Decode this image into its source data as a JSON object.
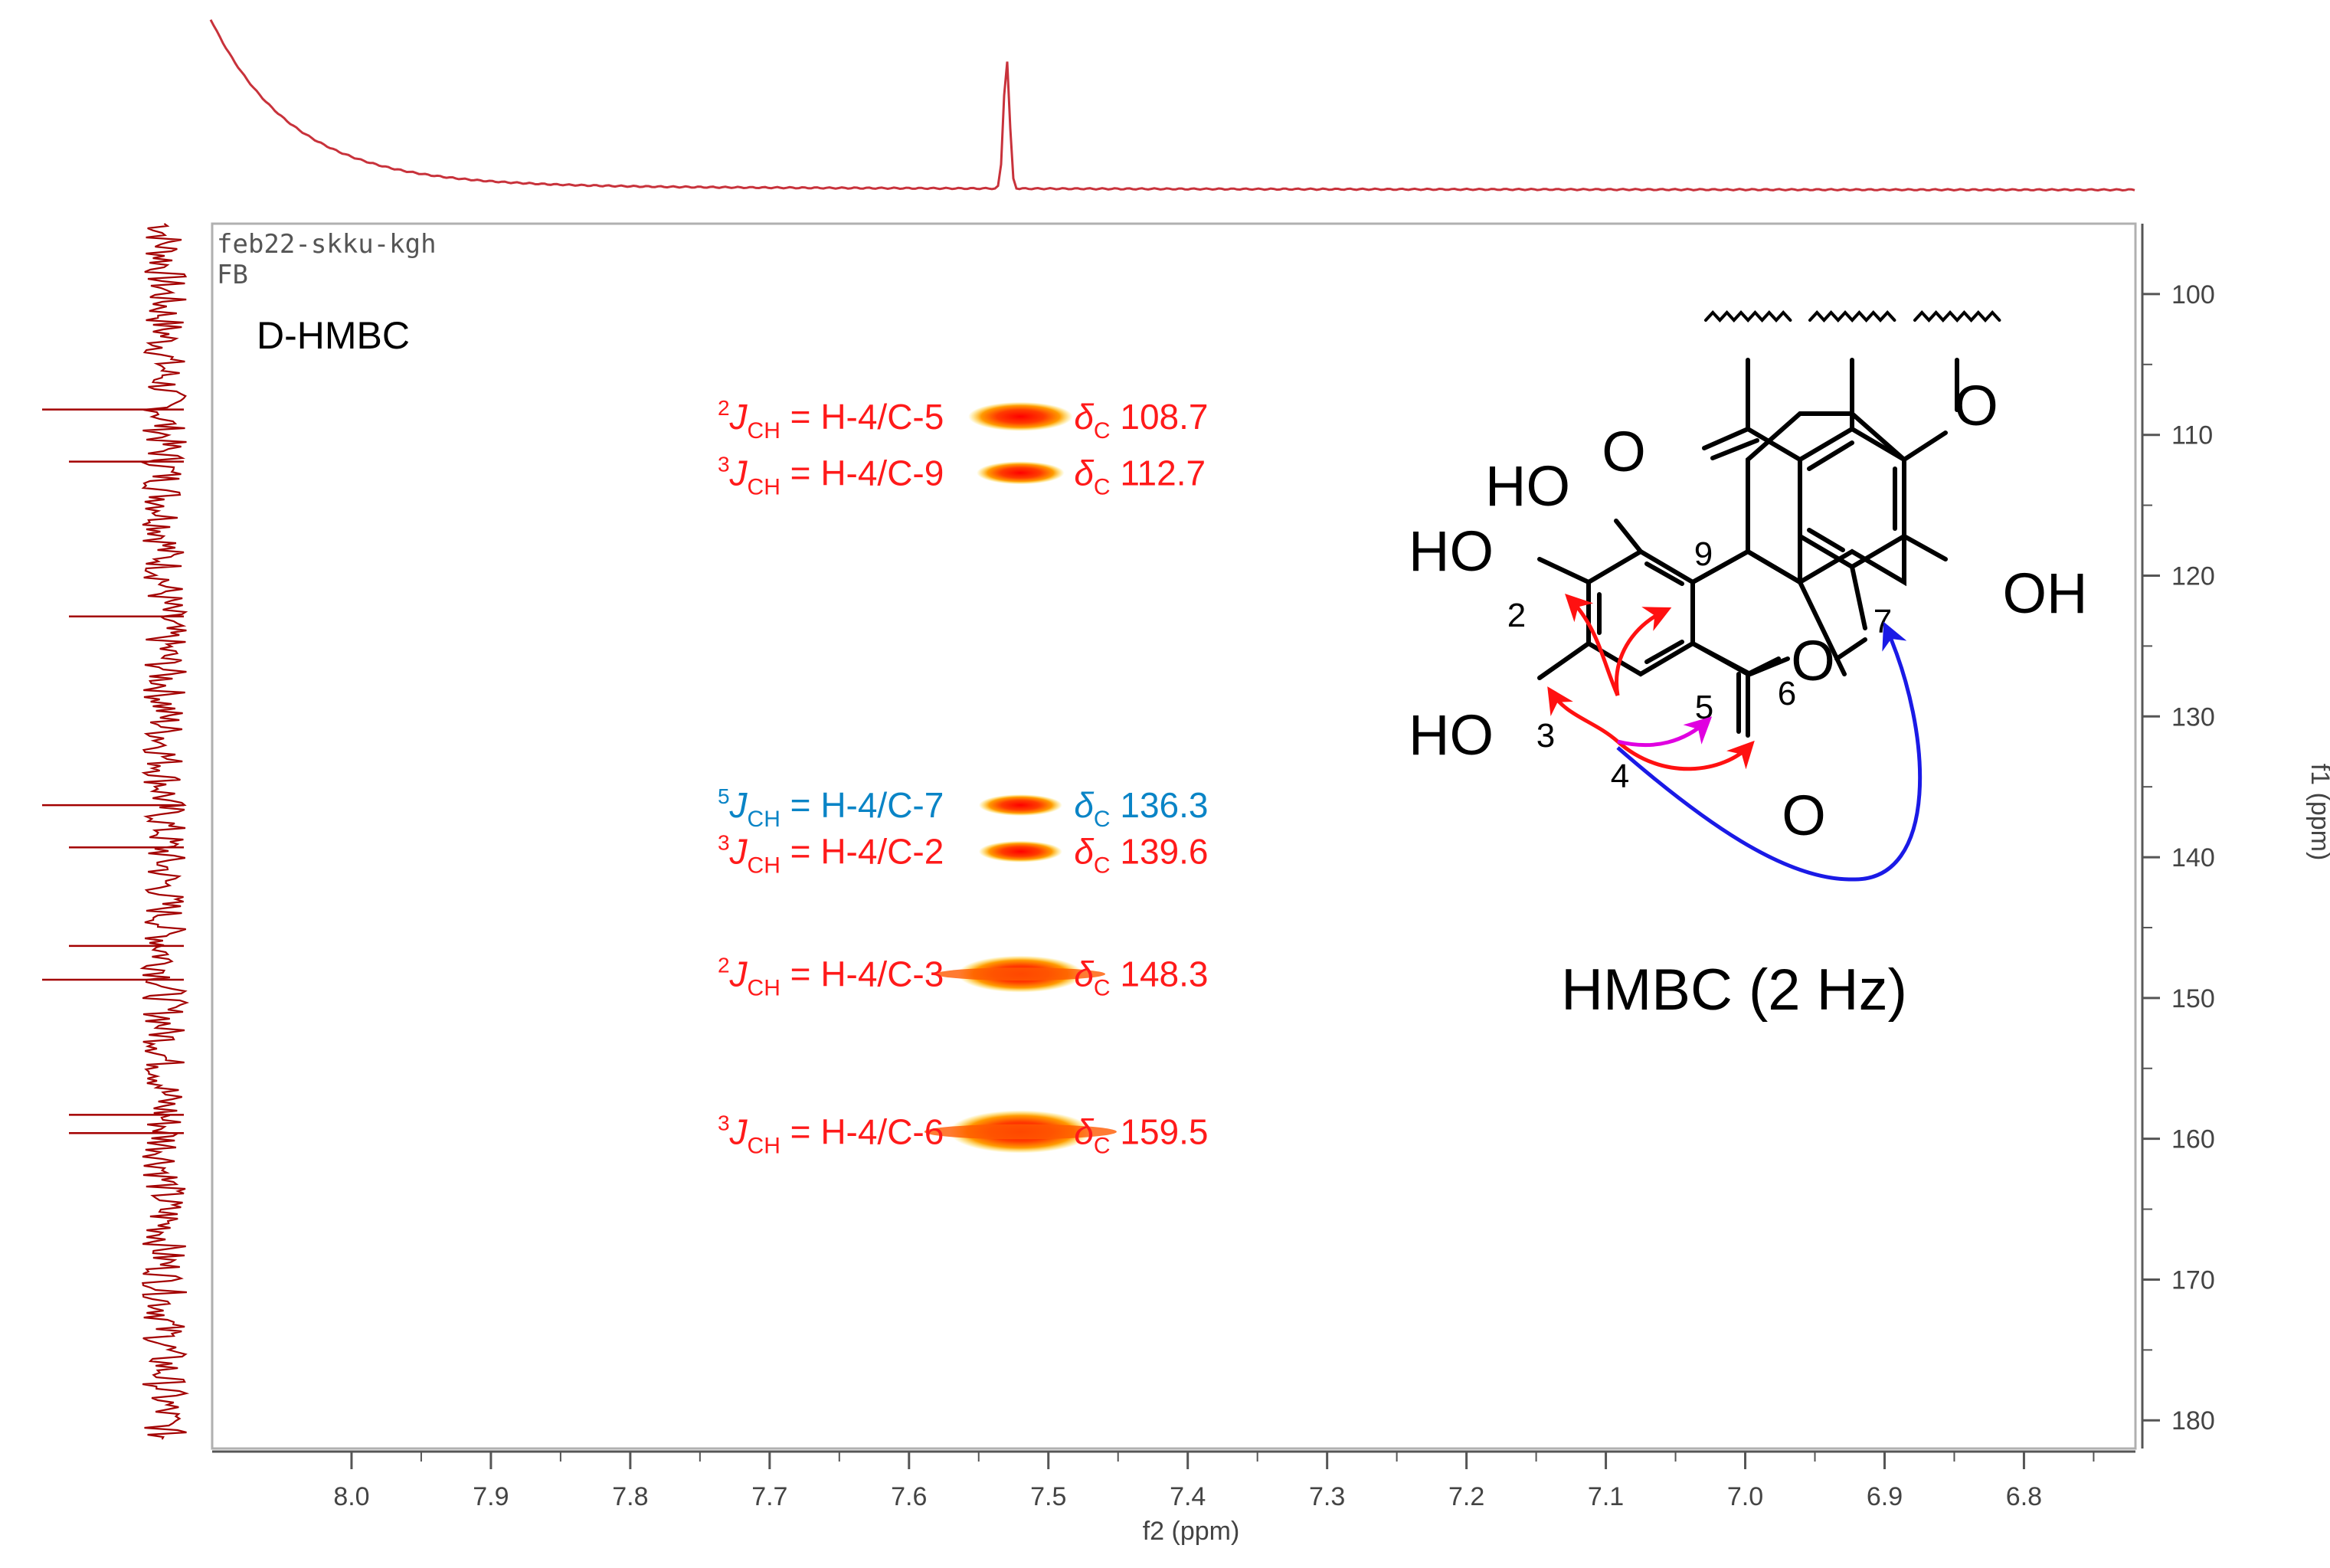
{
  "chart_data": {
    "type": "heatmap",
    "experiment": {
      "line1": "feb22-skku-kgh",
      "line2": "FB",
      "name": "D-HMBC"
    },
    "xlabel": "f2 (ppm)",
    "ylabel": "f1 (ppm)",
    "xlim": [
      8.1,
      6.72
    ],
    "ylim": [
      95,
      182
    ],
    "x_ticks": [
      "8.0",
      "7.9",
      "7.8",
      "7.7",
      "7.6",
      "7.5",
      "7.4",
      "7.3",
      "7.2",
      "7.1",
      "7.0",
      "6.9",
      "6.8"
    ],
    "y_ticks": [
      "100",
      "110",
      "120",
      "130",
      "140",
      "150",
      "160",
      "170",
      "180"
    ],
    "proton_peak_ppm": 7.53,
    "carbon_projection_peaks_ppm": [
      108.2,
      111.9,
      122.9,
      136.3,
      139.3,
      146.3,
      148.7,
      158.3,
      159.6
    ],
    "cross_peaks": [
      {
        "f2": 7.52,
        "f1": 108.7,
        "intensity": 0.55,
        "jsup": "2",
        "jlabel": "J",
        "jsub": "CH",
        "assign": " = H-4/C-5",
        "delta": "δ",
        "dsub": "C",
        "shift": " 108.7",
        "color": "#ff1a1a"
      },
      {
        "f2": 7.52,
        "f1": 112.7,
        "intensity": 0.35,
        "jsup": "3",
        "jlabel": "J",
        "jsub": "CH",
        "assign": " = H-4/C-9",
        "delta": "δ",
        "dsub": "C",
        "shift": " 112.7",
        "color": "#ff1a1a"
      },
      {
        "f2": 7.52,
        "f1": 136.3,
        "intensity": 0.3,
        "jsup": "5",
        "jlabel": "J",
        "jsub": "CH",
        "assign": " = H-4/C-7",
        "delta": "δ",
        "dsub": "C",
        "shift": " 136.3",
        "color": "#0a84c6"
      },
      {
        "f2": 7.52,
        "f1": 139.6,
        "intensity": 0.3,
        "jsup": "3",
        "jlabel": "J",
        "jsub": "CH",
        "assign": " = H-4/C-2",
        "delta": "δ",
        "dsub": "C",
        "shift": " 139.6",
        "color": "#ff1a1a"
      },
      {
        "f2": 7.52,
        "f1": 148.3,
        "intensity": 0.8,
        "jsup": "2",
        "jlabel": "J",
        "jsub": "CH",
        "assign": " = H-4/C-3",
        "delta": "δ",
        "dsub": "C",
        "shift": " 148.3",
        "color": "#ff1a1a"
      },
      {
        "f2": 7.52,
        "f1": 159.5,
        "intensity": 1.0,
        "jsup": "3",
        "jlabel": "J",
        "jsub": "CH",
        "assign": " = H-4/C-6",
        "delta": "δ",
        "dsub": "C",
        "shift": " 159.5",
        "color": "#ff1a1a"
      }
    ],
    "structure": {
      "atom_labels": [
        "HO",
        "HO",
        "HO",
        "O",
        "O",
        "O",
        "OH",
        "O"
      ],
      "numbers": [
        "2",
        "3",
        "4",
        "5",
        "6",
        "7",
        "9"
      ],
      "caption": "HMBC (2 Hz)"
    },
    "colors": {
      "projection": "#c8323b",
      "projection_dark": "#a30000",
      "red_arrow": "#ff1111",
      "magenta_arrow": "#e000e0",
      "blue_arrow": "#1a1ae6",
      "peak_core": "#ff0000",
      "peak_edge": "#ffb000"
    }
  }
}
